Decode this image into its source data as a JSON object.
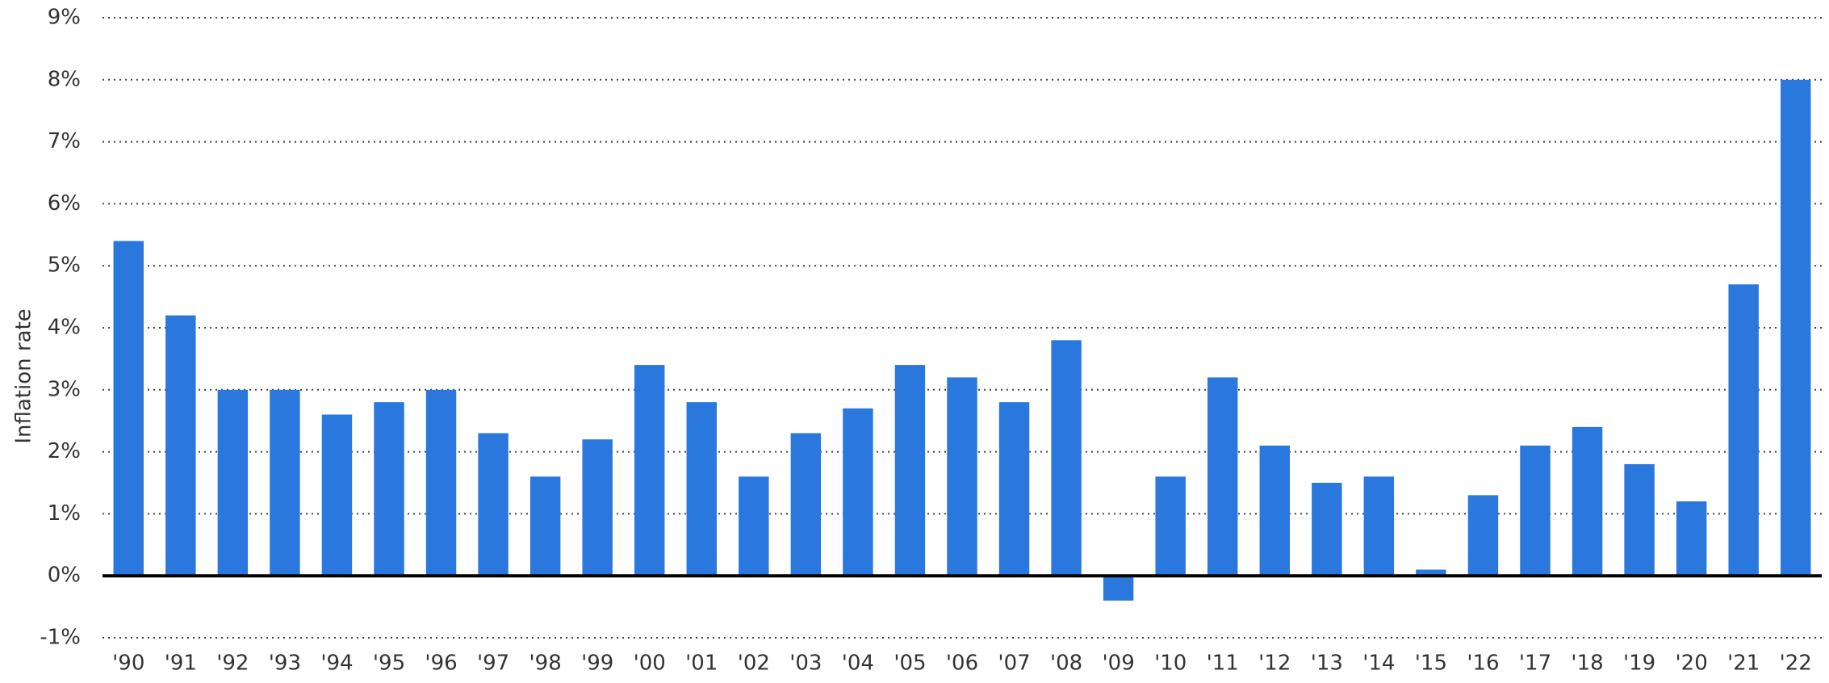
{
  "chart_data": {
    "type": "bar",
    "y_label": "Inflation rate",
    "categories": [
      "'90",
      "'91",
      "'92",
      "'93",
      "'94",
      "'95",
      "'96",
      "'97",
      "'98",
      "'99",
      "'00",
      "'01",
      "'02",
      "'03",
      "'04",
      "'05",
      "'06",
      "'07",
      "'08",
      "'09",
      "'10",
      "'11",
      "'12",
      "'13",
      "'14",
      "'15",
      "'16",
      "'17",
      "'18",
      "'19",
      "'20",
      "'21",
      "'22"
    ],
    "values": [
      5.4,
      4.2,
      3.0,
      3.0,
      2.6,
      2.8,
      3.0,
      2.3,
      1.6,
      2.2,
      3.4,
      2.8,
      1.6,
      2.3,
      2.7,
      3.4,
      3.2,
      2.8,
      3.8,
      -0.4,
      1.6,
      3.2,
      2.1,
      1.5,
      1.6,
      0.1,
      1.3,
      2.1,
      2.4,
      1.8,
      1.2,
      4.7,
      8.0
    ],
    "color": "#2a77dd",
    "ylim": [
      -1,
      9
    ],
    "yticks": [
      {
        "value": -1,
        "label": "-1%"
      },
      {
        "value": 0,
        "label": "0%"
      },
      {
        "value": 1,
        "label": "1%"
      },
      {
        "value": 2,
        "label": "2%"
      },
      {
        "value": 3,
        "label": "3%"
      },
      {
        "value": 4,
        "label": "4%"
      },
      {
        "value": 5,
        "label": "5%"
      },
      {
        "value": 6,
        "label": "6%"
      },
      {
        "value": 7,
        "label": "7%"
      },
      {
        "value": 8,
        "label": "8%"
      },
      {
        "value": 9,
        "label": "9%"
      }
    ],
    "grid": true
  }
}
